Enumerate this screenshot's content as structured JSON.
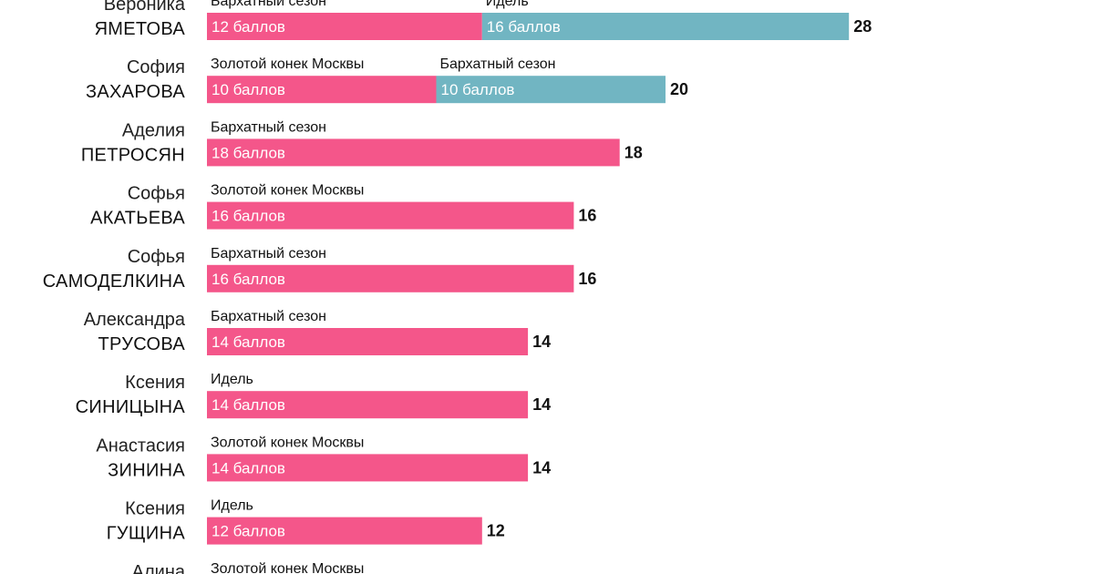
{
  "chart_data": {
    "type": "bar",
    "orientation": "horizontal",
    "stacked": true,
    "title": "",
    "xlabel": "",
    "ylabel": "",
    "xlim": [
      0,
      28
    ],
    "grid": false,
    "legend": "none",
    "colors": {
      "first": "#f4568a",
      "second": "#71b5c2"
    },
    "unit_suffix": " баллов",
    "rows": [
      {
        "first_name": "Вероника",
        "last_name": "ЯМЕТОВА",
        "total": 28,
        "segments": [
          {
            "event": "Бархатный сезон",
            "points": 12
          },
          {
            "event": "Идель",
            "points": 16
          }
        ]
      },
      {
        "first_name": "София",
        "last_name": "ЗАХАРОВА",
        "total": 20,
        "segments": [
          {
            "event": "Золотой конек Москвы",
            "points": 10
          },
          {
            "event": "Бархатный сезон",
            "points": 10
          }
        ]
      },
      {
        "first_name": "Аделия",
        "last_name": "ПЕТРОСЯН",
        "total": 18,
        "segments": [
          {
            "event": "Бархатный сезон",
            "points": 18
          }
        ]
      },
      {
        "first_name": "Софья",
        "last_name": "АКАТЬЕВА",
        "total": 16,
        "segments": [
          {
            "event": "Золотой конек Москвы",
            "points": 16
          }
        ]
      },
      {
        "first_name": "Софья",
        "last_name": "САМОДЕЛКИНА",
        "total": 16,
        "segments": [
          {
            "event": "Бархатный сезон",
            "points": 16
          }
        ]
      },
      {
        "first_name": "Александра",
        "last_name": "ТРУСОВА",
        "total": 14,
        "segments": [
          {
            "event": "Бархатный сезон",
            "points": 14
          }
        ]
      },
      {
        "first_name": "Ксения",
        "last_name": "СИНИЦЫНА",
        "total": 14,
        "segments": [
          {
            "event": "Идель",
            "points": 14
          }
        ]
      },
      {
        "first_name": "Анастасия",
        "last_name": "ЗИНИНА",
        "total": 14,
        "segments": [
          {
            "event": "Золотой конек Москвы",
            "points": 14
          }
        ]
      },
      {
        "first_name": "Ксения",
        "last_name": "ГУЩИНА",
        "total": 12,
        "segments": [
          {
            "event": "Идель",
            "points": 12
          }
        ]
      },
      {
        "first_name": "Алина",
        "last_name": "",
        "total": null,
        "segments": [
          {
            "event": "Золотой конек Москвы",
            "points": null
          }
        ]
      }
    ]
  }
}
